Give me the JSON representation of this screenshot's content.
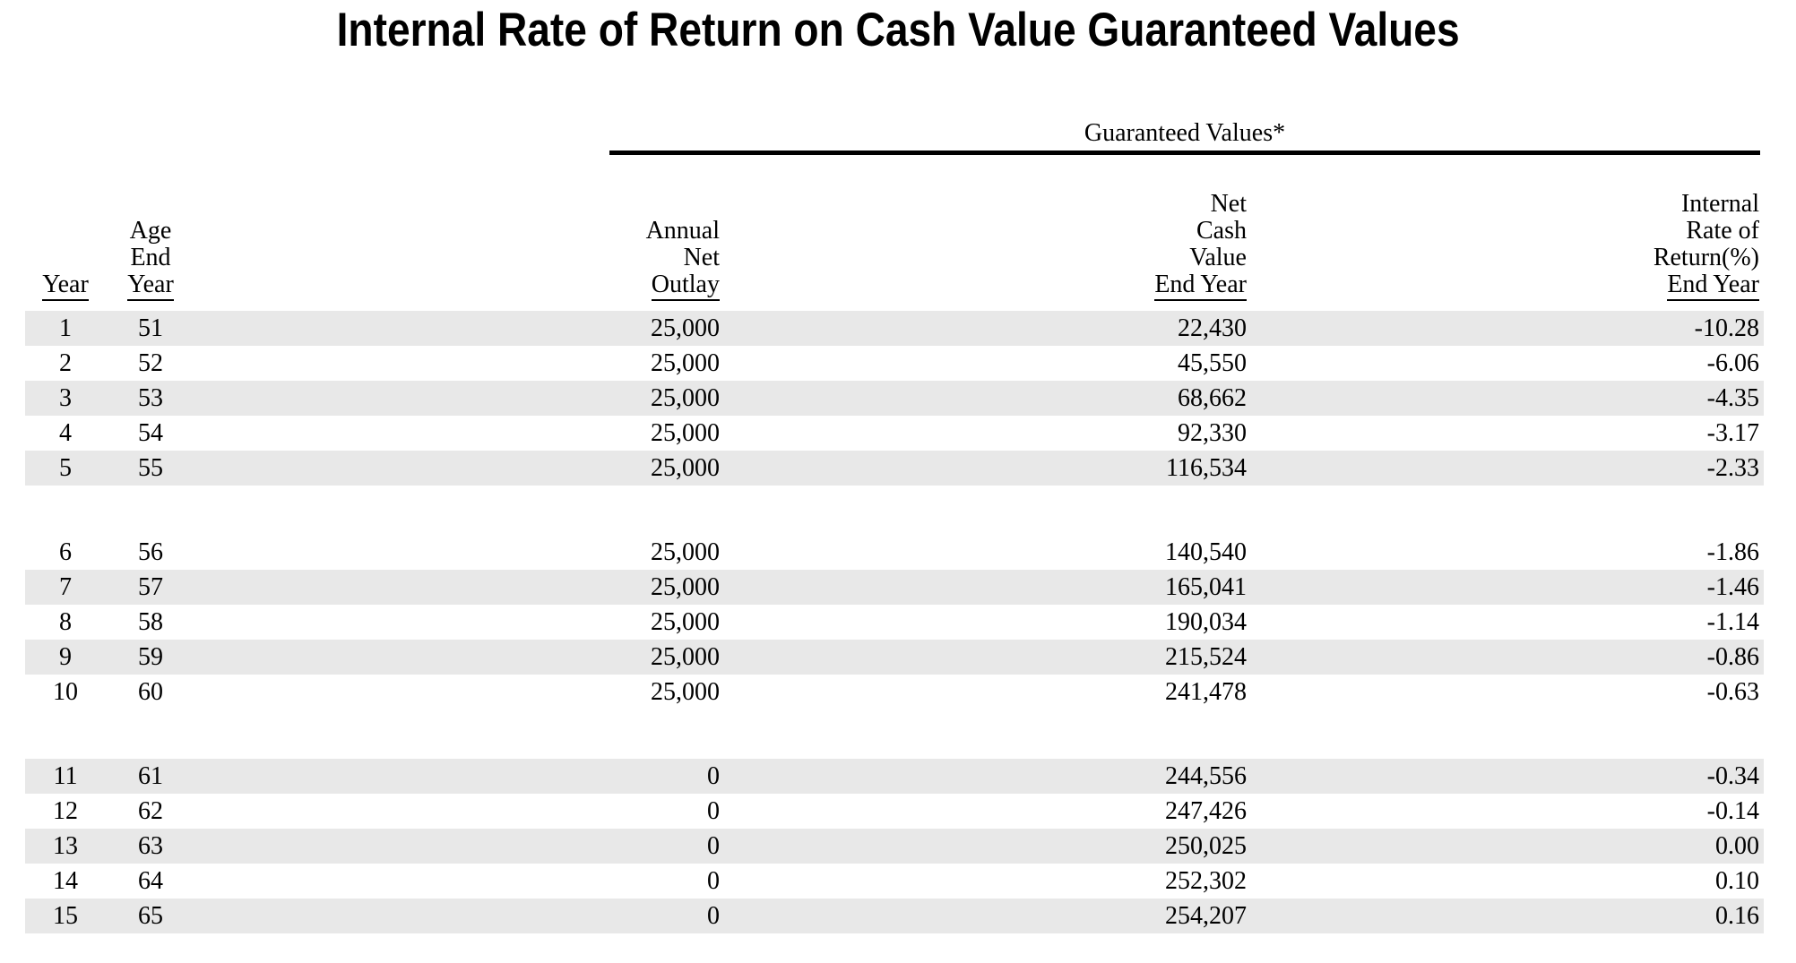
{
  "title": "Internal Rate of Return on Cash Value Guaranteed Values",
  "spanner": {
    "label": "Guaranteed Values*"
  },
  "columns": [
    {
      "id": "year",
      "lines": [
        "Year"
      ]
    },
    {
      "id": "age",
      "lines": [
        "Age",
        "End",
        "Year"
      ]
    },
    {
      "id": "outlay",
      "lines": [
        "Annual",
        "Net",
        "Outlay"
      ]
    },
    {
      "id": "ncv",
      "lines": [
        "Net",
        "Cash",
        "Value",
        "End Year"
      ]
    },
    {
      "id": "irr",
      "lines": [
        "Internal",
        "Rate of",
        "Return(%)",
        "End Year"
      ]
    }
  ],
  "colors": {
    "row_stripe": "#e8e8e8",
    "text": "#000000",
    "rule": "#000000"
  },
  "table": {
    "groups": [
      {
        "rows": [
          {
            "year": 1,
            "age": 51,
            "outlay": "25,000",
            "ncv": "22,430",
            "irr": "-10.28"
          },
          {
            "year": 2,
            "age": 52,
            "outlay": "25,000",
            "ncv": "45,550",
            "irr": "-6.06"
          },
          {
            "year": 3,
            "age": 53,
            "outlay": "25,000",
            "ncv": "68,662",
            "irr": "-4.35"
          },
          {
            "year": 4,
            "age": 54,
            "outlay": "25,000",
            "ncv": "92,330",
            "irr": "-3.17"
          },
          {
            "year": 5,
            "age": 55,
            "outlay": "25,000",
            "ncv": "116,534",
            "irr": "-2.33"
          }
        ]
      },
      {
        "rows": [
          {
            "year": 6,
            "age": 56,
            "outlay": "25,000",
            "ncv": "140,540",
            "irr": "-1.86"
          },
          {
            "year": 7,
            "age": 57,
            "outlay": "25,000",
            "ncv": "165,041",
            "irr": "-1.46"
          },
          {
            "year": 8,
            "age": 58,
            "outlay": "25,000",
            "ncv": "190,034",
            "irr": "-1.14"
          },
          {
            "year": 9,
            "age": 59,
            "outlay": "25,000",
            "ncv": "215,524",
            "irr": "-0.86"
          },
          {
            "year": 10,
            "age": 60,
            "outlay": "25,000",
            "ncv": "241,478",
            "irr": "-0.63"
          }
        ]
      },
      {
        "rows": [
          {
            "year": 11,
            "age": 61,
            "outlay": "0",
            "ncv": "244,556",
            "irr": "-0.34"
          },
          {
            "year": 12,
            "age": 62,
            "outlay": "0",
            "ncv": "247,426",
            "irr": "-0.14"
          },
          {
            "year": 13,
            "age": 63,
            "outlay": "0",
            "ncv": "250,025",
            "irr": "0.00"
          },
          {
            "year": 14,
            "age": 64,
            "outlay": "0",
            "ncv": "252,302",
            "irr": "0.10"
          },
          {
            "year": 15,
            "age": 65,
            "outlay": "0",
            "ncv": "254,207",
            "irr": "0.16"
          }
        ]
      }
    ]
  }
}
